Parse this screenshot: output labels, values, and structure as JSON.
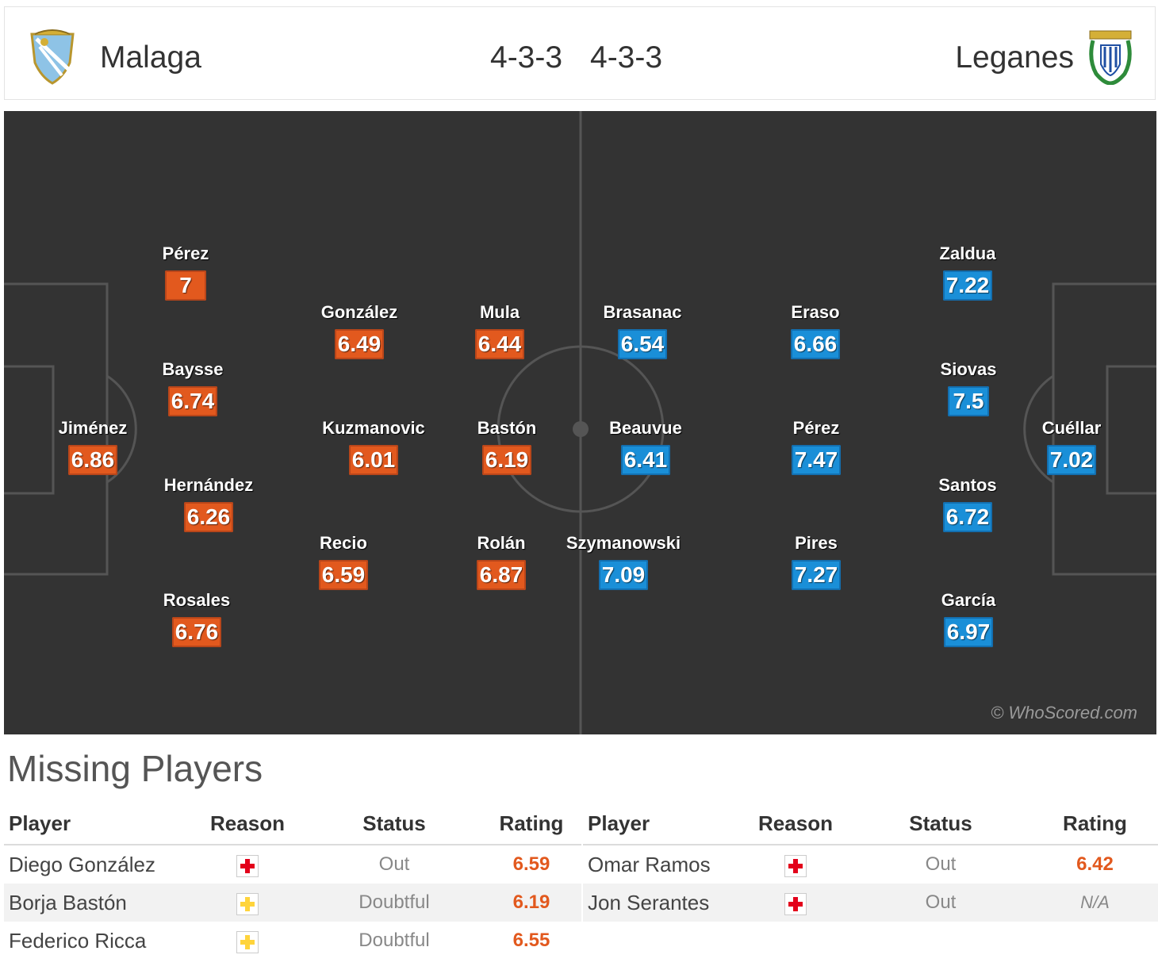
{
  "header": {
    "home_team": "Malaga",
    "away_team": "Leganes",
    "home_formation": "4-3-3",
    "away_formation": "4-3-3"
  },
  "colors": {
    "home_rating_bg": "#e2591e",
    "away_rating_bg": "#1a8fd8",
    "pitch_bg": "#333333"
  },
  "pitch": {
    "watermark": "© WhoScored.com",
    "home_players": [
      {
        "name": "Jiménez",
        "rating": "6.86"
      },
      {
        "name": "Pérez",
        "rating": "7"
      },
      {
        "name": "Baysse",
        "rating": "6.74"
      },
      {
        "name": "Hernández",
        "rating": "6.26"
      },
      {
        "name": "Rosales",
        "rating": "6.76"
      },
      {
        "name": "González",
        "rating": "6.49"
      },
      {
        "name": "Kuzmanovic",
        "rating": "6.01"
      },
      {
        "name": "Recio",
        "rating": "6.59"
      },
      {
        "name": "Mula",
        "rating": "6.44"
      },
      {
        "name": "Bastón",
        "rating": "6.19"
      },
      {
        "name": "Rolán",
        "rating": "6.87"
      }
    ],
    "away_players": [
      {
        "name": "Brasanac",
        "rating": "6.54"
      },
      {
        "name": "Beauvue",
        "rating": "6.41"
      },
      {
        "name": "Szymanowski",
        "rating": "7.09"
      },
      {
        "name": "Eraso",
        "rating": "6.66"
      },
      {
        "name": "Pérez",
        "rating": "7.47"
      },
      {
        "name": "Pires",
        "rating": "7.27"
      },
      {
        "name": "Zaldua",
        "rating": "7.22"
      },
      {
        "name": "Siovas",
        "rating": "7.5"
      },
      {
        "name": "Santos",
        "rating": "6.72"
      },
      {
        "name": "García",
        "rating": "6.97"
      },
      {
        "name": "Cuéllar",
        "rating": "7.02"
      }
    ]
  },
  "missing": {
    "title": "Missing Players",
    "columns": [
      "Player",
      "Reason",
      "Status",
      "Rating"
    ],
    "home": [
      {
        "player": "Diego González",
        "reason": "injury-icon",
        "status": "Out",
        "rating": "6.59"
      },
      {
        "player": "Borja Bastón",
        "reason": "doubtful-icon",
        "status": "Doubtful",
        "rating": "6.19"
      },
      {
        "player": "Federico Ricca",
        "reason": "doubtful-icon",
        "status": "Doubtful",
        "rating": "6.55"
      }
    ],
    "away": [
      {
        "player": "Omar Ramos",
        "reason": "injury-icon",
        "status": "Out",
        "rating": "6.42"
      },
      {
        "player": "Jon Serantes",
        "reason": "injury-icon",
        "status": "Out",
        "rating": "N/A"
      }
    ]
  }
}
